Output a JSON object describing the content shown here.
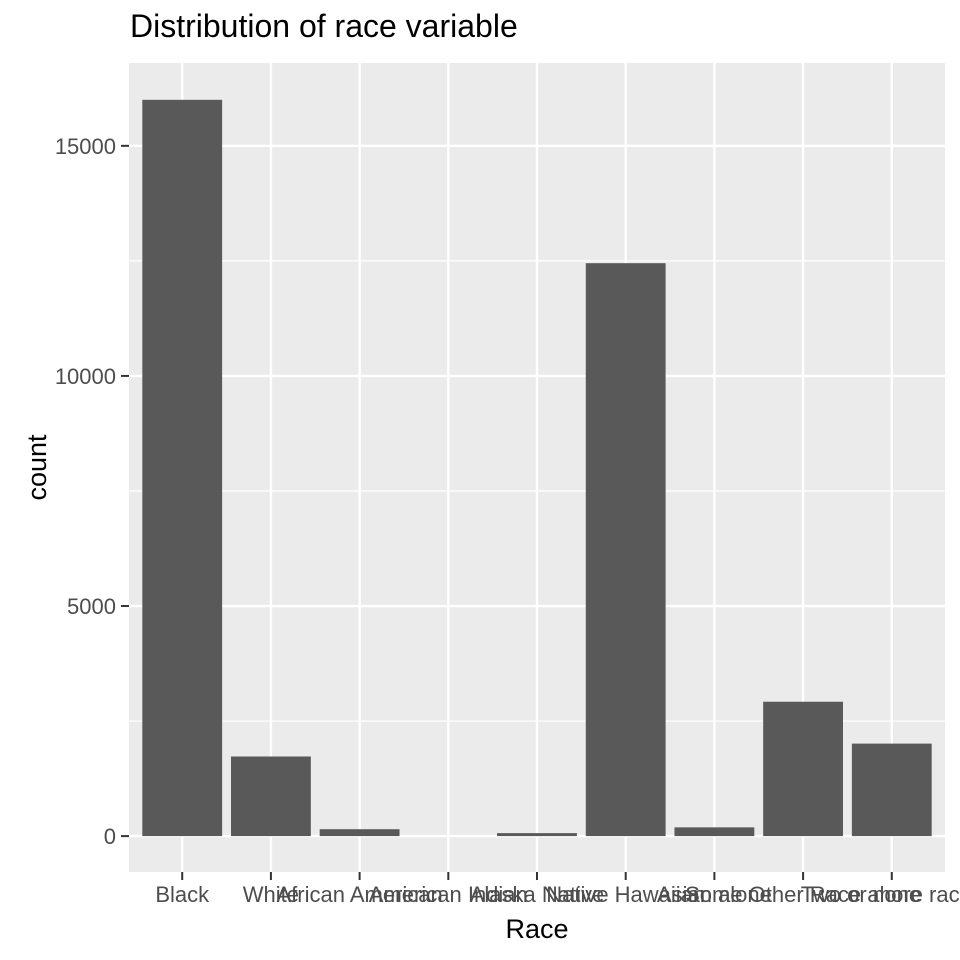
{
  "chart_data": {
    "type": "bar",
    "title": "Distribution of race variable",
    "xlabel": "Race",
    "ylabel": "count",
    "categories": [
      "Black",
      "White",
      "African American",
      "American Indian",
      "Alaska Native",
      "Native Hawaiian",
      "Asian alone",
      "Some Other Race alone",
      "Two or more races"
    ],
    "values": [
      16000,
      1730,
      150,
      0,
      65,
      12450,
      190,
      2920,
      2010
    ],
    "ylim": [
      -780,
      16800
    ],
    "yticks": [
      0,
      5000,
      10000,
      15000
    ],
    "ytick_labels": [
      "0",
      "5000",
      "10000",
      "15000"
    ],
    "grid": true,
    "bar_color": "#595959",
    "panel_color": "#ebebeb",
    "grid_color": "#ffffff"
  }
}
